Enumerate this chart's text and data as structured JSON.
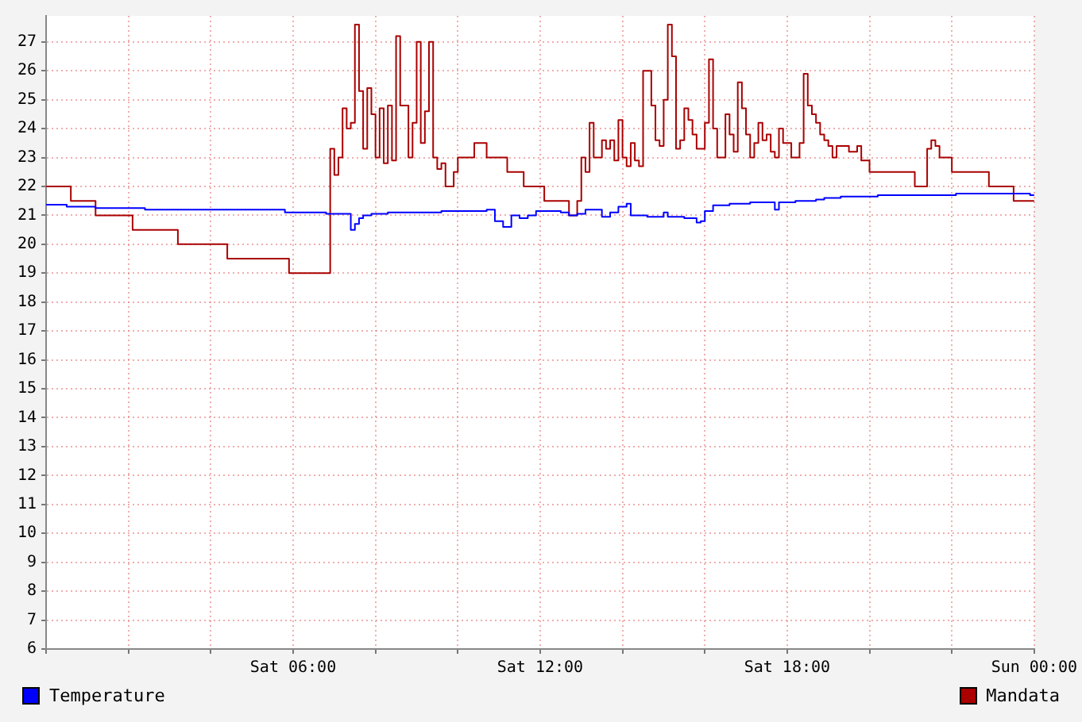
{
  "chart_data": {
    "type": "step",
    "categories": [
      null,
      null,
      null,
      null,
      null,
      null,
      null,
      null,
      null,
      null,
      null,
      null,
      null,
      null,
      null,
      null,
      null,
      null,
      null,
      null,
      null,
      null,
      null,
      null,
      null,
      null,
      null,
      null,
      null,
      null,
      null,
      null,
      null,
      null,
      null,
      null,
      null,
      null,
      null,
      null,
      null,
      null,
      null,
      null,
      null,
      null,
      null,
      null,
      null,
      null,
      null,
      null,
      null,
      null,
      null,
      null,
      null,
      null,
      null,
      null,
      "Sat 06:00",
      null,
      null,
      null,
      null,
      null,
      null,
      null,
      null,
      null,
      null,
      null,
      null,
      null,
      null,
      null,
      null,
      null,
      null,
      null,
      null,
      null,
      null,
      null,
      null,
      null,
      null,
      null,
      null,
      null,
      null,
      null,
      null,
      null,
      null,
      null,
      null,
      null,
      null,
      null,
      null,
      null,
      null,
      null,
      null,
      null,
      null,
      null,
      null,
      null,
      null,
      null,
      null,
      null,
      null,
      null,
      null,
      null,
      null,
      null,
      "Sat 12:00",
      null,
      null,
      null,
      null,
      null,
      null,
      null,
      null,
      null,
      null,
      null,
      null,
      null,
      null,
      null,
      null,
      null,
      null,
      null,
      null,
      null,
      null,
      null,
      null,
      null,
      null,
      null,
      null,
      null,
      null,
      null,
      null,
      null,
      null,
      null,
      null,
      null,
      null,
      null,
      null,
      null,
      null,
      null,
      null,
      null,
      null,
      null,
      null,
      null,
      null,
      null,
      null,
      null,
      null,
      null,
      null,
      null,
      null,
      null,
      "Sat 18:00",
      null,
      null,
      null,
      null,
      null,
      null,
      null,
      null,
      null,
      null,
      null,
      null,
      null,
      null,
      null,
      null,
      null,
      null,
      null,
      null,
      null,
      null,
      null,
      null,
      null,
      null,
      null,
      null,
      null,
      null,
      null,
      null,
      null,
      null,
      null,
      null,
      null,
      null,
      null,
      null,
      null,
      null,
      null,
      null,
      null,
      null,
      null,
      null,
      null,
      null,
      null,
      null,
      null,
      null,
      null,
      null,
      null,
      null,
      null,
      "Sun 00:00"
    ],
    "ylim": [
      6,
      27.9
    ],
    "yticks": [
      6,
      7,
      8,
      9,
      10,
      11,
      12,
      13,
      14,
      15,
      16,
      17,
      18,
      19,
      20,
      21,
      22,
      23,
      24,
      25,
      26,
      27
    ],
    "grid": true,
    "legend": "bottom",
    "marker": "none",
    "line_style": "solid",
    "series": [
      {
        "name": "Temperature",
        "color": "#0000ff",
        "values": [
          21.37,
          21.37,
          21.37,
          21.37,
          21.37,
          21.37,
          21.3,
          21.3,
          21.3,
          21.3,
          21.3,
          21.3,
          21.3,
          21.25,
          21.25,
          21.25,
          21.25,
          21.25,
          21.25,
          21.25,
          21.25,
          21.25,
          21.25,
          21.25,
          21.25,
          21.2,
          21.2,
          21.2,
          21.2,
          21.2,
          21.2,
          21.2,
          21.2,
          21.2,
          21.2,
          21.2,
          21.2,
          21.2,
          21.2,
          21.2,
          21.2,
          21.2,
          21.2,
          21.2,
          21.2,
          21.2,
          21.2,
          21.2,
          21.2,
          21.2,
          21.2,
          21.2,
          21.2,
          21.2,
          21.2,
          21.2,
          21.2,
          21.2,
          21.2,
          21.1,
          21.1,
          21.1,
          21.1,
          21.1,
          21.1,
          21.1,
          21.1,
          21.1,
          21.1,
          21.05,
          21.05,
          21.05,
          21.05,
          21.05,
          21.05,
          20.5,
          20.7,
          20.9,
          21.0,
          21.0,
          21.05,
          21.05,
          21.05,
          21.05,
          21.1,
          21.1,
          21.1,
          21.1,
          21.1,
          21.1,
          21.1,
          21.1,
          21.1,
          21.1,
          21.1,
          21.1,
          21.1,
          21.15,
          21.15,
          21.15,
          21.15,
          21.15,
          21.15,
          21.15,
          21.15,
          21.15,
          21.15,
          21.15,
          21.2,
          21.2,
          20.8,
          20.8,
          20.6,
          20.6,
          21.0,
          21.0,
          20.9,
          20.9,
          21.0,
          21.0,
          21.15,
          21.15,
          21.15,
          21.15,
          21.15,
          21.15,
          21.1,
          21.1,
          21.0,
          21.0,
          21.05,
          21.05,
          21.2,
          21.2,
          21.2,
          21.2,
          20.95,
          20.95,
          21.1,
          21.1,
          21.3,
          21.3,
          21.4,
          21.0,
          21.0,
          21.0,
          21.0,
          20.95,
          20.95,
          20.95,
          20.95,
          21.1,
          20.95,
          20.95,
          20.95,
          20.95,
          20.9,
          20.9,
          20.9,
          20.75,
          20.8,
          21.15,
          21.15,
          21.35,
          21.35,
          21.35,
          21.35,
          21.4,
          21.4,
          21.4,
          21.4,
          21.4,
          21.45,
          21.45,
          21.45,
          21.45,
          21.45,
          21.45,
          21.2,
          21.45,
          21.45,
          21.45,
          21.45,
          21.5,
          21.5,
          21.5,
          21.5,
          21.5,
          21.55,
          21.55,
          21.6,
          21.6,
          21.6,
          21.6,
          21.65,
          21.65,
          21.65,
          21.65,
          21.65,
          21.65,
          21.65,
          21.65,
          21.65,
          21.7,
          21.7,
          21.7,
          21.7,
          21.7,
          21.7,
          21.7,
          21.7,
          21.7,
          21.7,
          21.7,
          21.7,
          21.7,
          21.7,
          21.7,
          21.7,
          21.7,
          21.7,
          21.7,
          21.75,
          21.75,
          21.75,
          21.75,
          21.75,
          21.75,
          21.75,
          21.75,
          21.75,
          21.75,
          21.75,
          21.75,
          21.75,
          21.75,
          21.75,
          21.75,
          21.75,
          21.75,
          21.7
        ]
      },
      {
        "name": "Mandata",
        "color": "#aa0000",
        "values": [
          22,
          22,
          22,
          22,
          22,
          22,
          22,
          21.5,
          21.5,
          21.5,
          21.5,
          21.5,
          21.5,
          21,
          21,
          21,
          21,
          21,
          21,
          21,
          21,
          21,
          20.5,
          20.5,
          20.5,
          20.5,
          20.5,
          20.5,
          20.5,
          20.5,
          20.5,
          20.5,
          20.5,
          20,
          20,
          20,
          20,
          20,
          20,
          20,
          20,
          20,
          20,
          20,
          20,
          19.5,
          19.5,
          19.5,
          19.5,
          19.5,
          19.5,
          19.5,
          19.5,
          19.5,
          19.5,
          19.5,
          19.5,
          19.5,
          19.5,
          19.5,
          19,
          19,
          19,
          19,
          19,
          19,
          19,
          19,
          19,
          19,
          23.3,
          22.4,
          23,
          24.7,
          24,
          24.2,
          27.6,
          25.3,
          23.3,
          25.4,
          24.5,
          23,
          24.7,
          22.8,
          24.8,
          22.9,
          27.2,
          24.8,
          24.8,
          23,
          24.2,
          27,
          23.5,
          24.6,
          27,
          23,
          22.6,
          22.8,
          22,
          22,
          22.5,
          23,
          23,
          23,
          23,
          23.5,
          23.5,
          23.5,
          23,
          23,
          23,
          23,
          23,
          22.5,
          22.5,
          22.5,
          22.5,
          22,
          22,
          22,
          22,
          22,
          21.5,
          21.5,
          21.5,
          21.5,
          21.5,
          21.5,
          21,
          21,
          21.5,
          23,
          22.5,
          24.2,
          23,
          23,
          23.6,
          23.3,
          23.6,
          22.9,
          24.3,
          23,
          22.7,
          23.5,
          22.9,
          22.7,
          26,
          26,
          24.8,
          23.6,
          23.4,
          25,
          27.6,
          26.5,
          23.3,
          23.6,
          24.7,
          24.3,
          23.8,
          23.3,
          23.3,
          24.2,
          26.4,
          24,
          23,
          23,
          24.5,
          23.8,
          23.2,
          25.6,
          24.7,
          23.8,
          23,
          23.5,
          24.2,
          23.6,
          23.8,
          23.2,
          23,
          24,
          23.5,
          23.5,
          23,
          23,
          23.5,
          25.9,
          24.8,
          24.5,
          24.2,
          23.8,
          23.6,
          23.4,
          23,
          23.4,
          23.4,
          23.4,
          23.2,
          23.2,
          23.4,
          22.9,
          22.9,
          22.5,
          22.5,
          22.5,
          22.5,
          22.5,
          22.5,
          22.5,
          22.5,
          22.5,
          22.5,
          22.5,
          22,
          22,
          22,
          23.3,
          23.6,
          23.4,
          23,
          23,
          23,
          22.5,
          22.5,
          22.5,
          22.5,
          22.5,
          22.5,
          22.5,
          22.5,
          22.5,
          22,
          22,
          22,
          22,
          22,
          22,
          21.5,
          21.5,
          21.5,
          21.5,
          21.5
        ]
      }
    ]
  }
}
